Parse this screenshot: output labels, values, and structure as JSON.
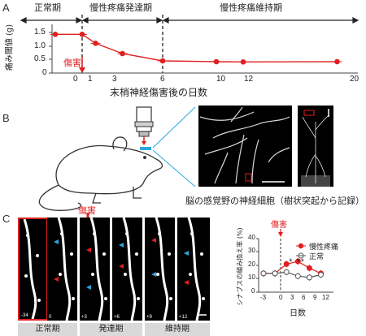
{
  "panels": {
    "a": "A",
    "b": "B",
    "c": "C"
  },
  "panelA": {
    "phases": [
      "正常期",
      "慢性疼痛発達期",
      "慢性疼痛維持期"
    ],
    "injury_label": "傷害",
    "ylabel": "痛み閾値 (g)",
    "xlabel": "末梢神経傷害後の日数",
    "yticks": [
      "1.5",
      "1.0",
      "0.5",
      "0"
    ],
    "xticks": [
      "0",
      "1",
      "3",
      "6",
      "10",
      "12",
      "20"
    ]
  },
  "panelB": {
    "caption": "脳の感覚野の神経細胞（樹状突起から記録）"
  },
  "panelC": {
    "injury_label": "傷害",
    "days": [
      "-34",
      "0",
      "+3",
      "+6",
      "+9",
      "+12"
    ],
    "phases": [
      "正常期",
      "発達期",
      "維持期"
    ],
    "graph": {
      "injury_label": "傷害",
      "ylabel": "シナプスの組み換え率 (%)",
      "xlabel": "日数",
      "yticks": [
        "40",
        "30",
        "20",
        "10",
        "0"
      ],
      "xticks": [
        "-3",
        "0",
        "3",
        "6",
        "9",
        "12"
      ],
      "legend": [
        "慢性疼痛",
        "正常"
      ],
      "sig": [
        "*",
        "**"
      ]
    }
  },
  "colors": {
    "red": "#e02020",
    "cyan": "#2aa7e0",
    "grey": "#555555"
  },
  "chart_data": [
    {
      "type": "line",
      "xlabel": "末梢神経傷害後の日数",
      "ylabel": "痛み閾値 (g)",
      "ylim": [
        0,
        1.8
      ],
      "xlim": [
        -3,
        20
      ],
      "series": [
        {
          "x": [
            -2,
            0,
            1,
            3,
            6,
            10,
            12,
            19
          ],
          "y": [
            1.43,
            1.43,
            1.1,
            0.72,
            0.45,
            0.42,
            0.41,
            0.42
          ]
        }
      ],
      "grid": false
    },
    {
      "type": "line",
      "xlabel": "日数",
      "ylabel": "シナプスの組み換え率 (%)",
      "ylim": [
        0,
        40
      ],
      "xticks": [
        -3,
        0,
        3,
        6,
        9,
        12
      ],
      "legend_position": "top-right",
      "series": [
        {
          "name": "慢性疼痛",
          "x": [
            -3,
            0,
            3,
            6,
            9,
            12
          ],
          "y": [
            14,
            14,
            21,
            23,
            18,
            14
          ]
        },
        {
          "name": "正常",
          "x": [
            -3,
            0,
            3,
            6,
            9,
            12
          ],
          "y": [
            14,
            14,
            15,
            12,
            11,
            13
          ]
        }
      ]
    }
  ]
}
